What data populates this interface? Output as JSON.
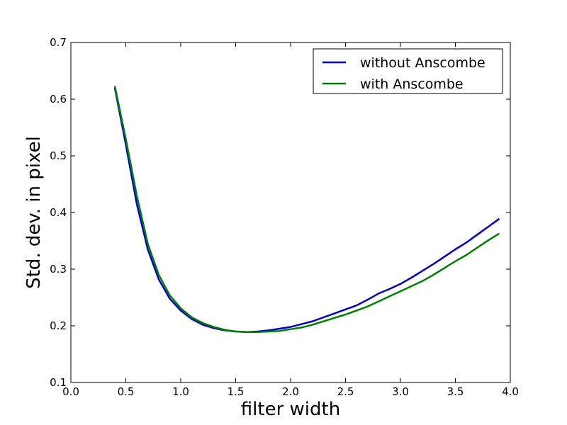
{
  "chart_data": {
    "type": "line",
    "title": "",
    "xlabel": "filter width",
    "ylabel": "Std. dev. in pixel",
    "xlim": [
      0.0,
      4.0
    ],
    "ylim": [
      0.1,
      0.7
    ],
    "xticks": [
      0.0,
      0.5,
      1.0,
      1.5,
      2.0,
      2.5,
      3.0,
      3.5,
      4.0
    ],
    "xtick_labels": [
      "0.0",
      "0.5",
      "1.0",
      "1.5",
      "2.0",
      "2.5",
      "3.0",
      "3.5",
      "4.0"
    ],
    "yticks": [
      0.1,
      0.2,
      0.3,
      0.4,
      0.5,
      0.6,
      0.7
    ],
    "ytick_labels": [
      "0.1",
      "0.2",
      "0.3",
      "0.4",
      "0.5",
      "0.6",
      "0.7"
    ],
    "grid": false,
    "legend_position": "top-right",
    "x": [
      0.4,
      0.5,
      0.6,
      0.7,
      0.8,
      0.9,
      1.0,
      1.1,
      1.2,
      1.3,
      1.4,
      1.5,
      1.6,
      1.7,
      1.8,
      1.9,
      2.0,
      2.1,
      2.2,
      2.3,
      2.4,
      2.5,
      2.6,
      2.7,
      2.8,
      2.9,
      3.0,
      3.1,
      3.2,
      3.3,
      3.4,
      3.5,
      3.6,
      3.7,
      3.8,
      3.9
    ],
    "series": [
      {
        "name": "without Anscombe",
        "color": "#0000cc",
        "values": [
          0.62,
          0.52,
          0.415,
          0.335,
          0.282,
          0.248,
          0.227,
          0.212,
          0.202,
          0.196,
          0.192,
          0.19,
          0.189,
          0.19,
          0.192,
          0.195,
          0.198,
          0.203,
          0.208,
          0.215,
          0.222,
          0.229,
          0.236,
          0.246,
          0.257,
          0.265,
          0.274,
          0.285,
          0.297,
          0.309,
          0.322,
          0.335,
          0.347,
          0.361,
          0.375,
          0.389
        ]
      },
      {
        "name": "with Anscombe",
        "color": "#007f00",
        "values": [
          0.623,
          0.53,
          0.43,
          0.345,
          0.29,
          0.254,
          0.231,
          0.215,
          0.205,
          0.198,
          0.193,
          0.19,
          0.189,
          0.189,
          0.19,
          0.191,
          0.194,
          0.197,
          0.202,
          0.208,
          0.214,
          0.22,
          0.227,
          0.234,
          0.243,
          0.252,
          0.261,
          0.27,
          0.279,
          0.29,
          0.302,
          0.314,
          0.325,
          0.338,
          0.351,
          0.363
        ]
      }
    ]
  }
}
